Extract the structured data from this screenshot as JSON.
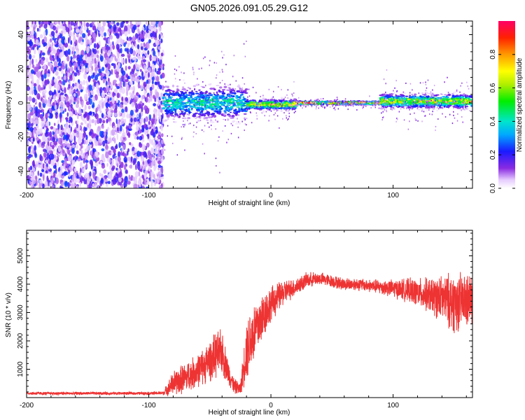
{
  "title": "GN05.2026.091.05.29.G12",
  "chart_data": [
    {
      "type": "heatmap",
      "xlabel": "Height of straight line (km)",
      "ylabel": "Frequency (Hz)",
      "xlim": [
        -200,
        165
      ],
      "ylim": [
        -50,
        48
      ],
      "xticks": [
        -200,
        -100,
        0,
        100
      ],
      "yticks": [
        -40,
        -20,
        0,
        20,
        40
      ],
      "colorbar": {
        "label": "Normalized spectral amplitude",
        "range": [
          0,
          1
        ],
        "ticks": [
          0,
          0.2,
          0.4,
          0.6,
          0.8
        ],
        "tick_labels": [
          "0.0",
          "0.2",
          "0.4",
          "0.6",
          "0.8"
        ]
      },
      "regions": [
        {
          "x": [
            -200,
            -88
          ],
          "description_value": "broadband noise, amplitude ~0.05-0.25",
          "freq_range": [
            -50,
            48
          ]
        },
        {
          "x": [
            -88,
            -20
          ],
          "center_freq": 0,
          "spread_hz": 10,
          "peak_amplitude": 0.5
        },
        {
          "x": [
            -20,
            20
          ],
          "center_freq": -1,
          "spread_hz": 3,
          "peak_amplitude": 0.8
        },
        {
          "x": [
            20,
            90
          ],
          "center_freq": 0,
          "spread_hz": 1,
          "peak_amplitude": 0.95
        },
        {
          "x": [
            90,
            165
          ],
          "center_freq": 1,
          "spread_hz": 4,
          "peak_amplitude": 0.8
        }
      ]
    },
    {
      "type": "line",
      "xlabel": "Height of straight line (km)",
      "ylabel": "SNR (10 * v/v)",
      "xlim": [
        -200,
        165
      ],
      "ylim": [
        0,
        5900
      ],
      "xticks": [
        -200,
        -100,
        0,
        100
      ],
      "yticks": [
        1000,
        2000,
        3000,
        4000,
        5000
      ],
      "color": "#ee3333",
      "series": [
        {
          "name": "SNR",
          "x": [
            -200,
            -150,
            -100,
            -88,
            -80,
            -70,
            -60,
            -50,
            -45,
            -40,
            -35,
            -30,
            -25,
            -20,
            -15,
            -10,
            -5,
            0,
            10,
            20,
            30,
            40,
            50,
            60,
            70,
            80,
            90,
            100,
            110,
            120,
            130,
            140,
            150,
            160,
            165
          ],
          "y": [
            150,
            150,
            150,
            160,
            500,
            700,
            950,
            1300,
            1500,
            1600,
            900,
            400,
            300,
            1700,
            2200,
            2600,
            3000,
            3300,
            3700,
            3900,
            4150,
            4200,
            4100,
            4000,
            4000,
            3950,
            3900,
            3850,
            3800,
            3700,
            3600,
            3500,
            3350,
            3400,
            3450
          ],
          "noise": [
            60,
            60,
            60,
            80,
            500,
            600,
            650,
            800,
            900,
            900,
            500,
            300,
            250,
            1200,
            1300,
            1100,
            900,
            700,
            500,
            350,
            300,
            250,
            250,
            250,
            250,
            250,
            300,
            350,
            450,
            550,
            700,
            900,
            1200,
            1100,
            1000
          ]
        }
      ]
    }
  ]
}
